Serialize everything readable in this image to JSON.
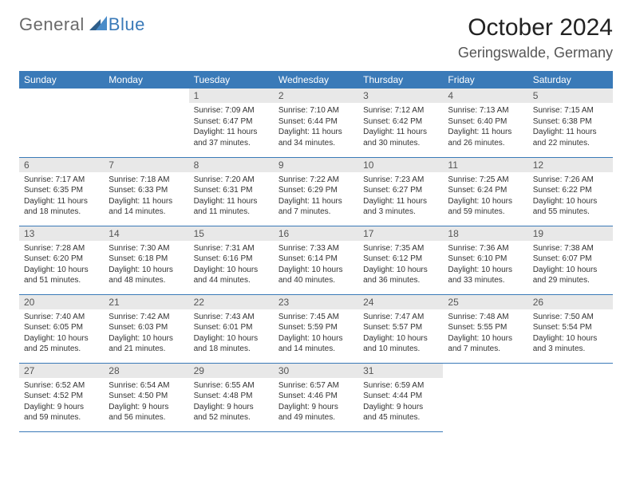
{
  "brand": {
    "part1": "General",
    "part2": "Blue"
  },
  "title": "October 2024",
  "location": "Geringswalde, Germany",
  "colors": {
    "header_bg": "#3a7ab8",
    "header_text": "#ffffff",
    "daynum_bg": "#e8e8e8",
    "daynum_text": "#555555",
    "body_text": "#333333",
    "rule": "#3a7ab8",
    "page_bg": "#ffffff",
    "logo_gray": "#6a6a6a",
    "logo_blue": "#3a7ab8"
  },
  "typography": {
    "month_title_pt": 30,
    "location_pt": 18,
    "dayheader_pt": 12,
    "daynum_pt": 12,
    "body_pt": 10,
    "font_family": "Arial"
  },
  "grid": {
    "columns": 7,
    "rows": 5,
    "first_weekday_index": 2,
    "days_in_month": 31
  },
  "day_headers": [
    "Sunday",
    "Monday",
    "Tuesday",
    "Wednesday",
    "Thursday",
    "Friday",
    "Saturday"
  ],
  "days": [
    {
      "n": 1,
      "sunrise": "7:09 AM",
      "sunset": "6:47 PM",
      "daylight": "11 hours and 37 minutes."
    },
    {
      "n": 2,
      "sunrise": "7:10 AM",
      "sunset": "6:44 PM",
      "daylight": "11 hours and 34 minutes."
    },
    {
      "n": 3,
      "sunrise": "7:12 AM",
      "sunset": "6:42 PM",
      "daylight": "11 hours and 30 minutes."
    },
    {
      "n": 4,
      "sunrise": "7:13 AM",
      "sunset": "6:40 PM",
      "daylight": "11 hours and 26 minutes."
    },
    {
      "n": 5,
      "sunrise": "7:15 AM",
      "sunset": "6:38 PM",
      "daylight": "11 hours and 22 minutes."
    },
    {
      "n": 6,
      "sunrise": "7:17 AM",
      "sunset": "6:35 PM",
      "daylight": "11 hours and 18 minutes."
    },
    {
      "n": 7,
      "sunrise": "7:18 AM",
      "sunset": "6:33 PM",
      "daylight": "11 hours and 14 minutes."
    },
    {
      "n": 8,
      "sunrise": "7:20 AM",
      "sunset": "6:31 PM",
      "daylight": "11 hours and 11 minutes."
    },
    {
      "n": 9,
      "sunrise": "7:22 AM",
      "sunset": "6:29 PM",
      "daylight": "11 hours and 7 minutes."
    },
    {
      "n": 10,
      "sunrise": "7:23 AM",
      "sunset": "6:27 PM",
      "daylight": "11 hours and 3 minutes."
    },
    {
      "n": 11,
      "sunrise": "7:25 AM",
      "sunset": "6:24 PM",
      "daylight": "10 hours and 59 minutes."
    },
    {
      "n": 12,
      "sunrise": "7:26 AM",
      "sunset": "6:22 PM",
      "daylight": "10 hours and 55 minutes."
    },
    {
      "n": 13,
      "sunrise": "7:28 AM",
      "sunset": "6:20 PM",
      "daylight": "10 hours and 51 minutes."
    },
    {
      "n": 14,
      "sunrise": "7:30 AM",
      "sunset": "6:18 PM",
      "daylight": "10 hours and 48 minutes."
    },
    {
      "n": 15,
      "sunrise": "7:31 AM",
      "sunset": "6:16 PM",
      "daylight": "10 hours and 44 minutes."
    },
    {
      "n": 16,
      "sunrise": "7:33 AM",
      "sunset": "6:14 PM",
      "daylight": "10 hours and 40 minutes."
    },
    {
      "n": 17,
      "sunrise": "7:35 AM",
      "sunset": "6:12 PM",
      "daylight": "10 hours and 36 minutes."
    },
    {
      "n": 18,
      "sunrise": "7:36 AM",
      "sunset": "6:10 PM",
      "daylight": "10 hours and 33 minutes."
    },
    {
      "n": 19,
      "sunrise": "7:38 AM",
      "sunset": "6:07 PM",
      "daylight": "10 hours and 29 minutes."
    },
    {
      "n": 20,
      "sunrise": "7:40 AM",
      "sunset": "6:05 PM",
      "daylight": "10 hours and 25 minutes."
    },
    {
      "n": 21,
      "sunrise": "7:42 AM",
      "sunset": "6:03 PM",
      "daylight": "10 hours and 21 minutes."
    },
    {
      "n": 22,
      "sunrise": "7:43 AM",
      "sunset": "6:01 PM",
      "daylight": "10 hours and 18 minutes."
    },
    {
      "n": 23,
      "sunrise": "7:45 AM",
      "sunset": "5:59 PM",
      "daylight": "10 hours and 14 minutes."
    },
    {
      "n": 24,
      "sunrise": "7:47 AM",
      "sunset": "5:57 PM",
      "daylight": "10 hours and 10 minutes."
    },
    {
      "n": 25,
      "sunrise": "7:48 AM",
      "sunset": "5:55 PM",
      "daylight": "10 hours and 7 minutes."
    },
    {
      "n": 26,
      "sunrise": "7:50 AM",
      "sunset": "5:54 PM",
      "daylight": "10 hours and 3 minutes."
    },
    {
      "n": 27,
      "sunrise": "6:52 AM",
      "sunset": "4:52 PM",
      "daylight": "9 hours and 59 minutes."
    },
    {
      "n": 28,
      "sunrise": "6:54 AM",
      "sunset": "4:50 PM",
      "daylight": "9 hours and 56 minutes."
    },
    {
      "n": 29,
      "sunrise": "6:55 AM",
      "sunset": "4:48 PM",
      "daylight": "9 hours and 52 minutes."
    },
    {
      "n": 30,
      "sunrise": "6:57 AM",
      "sunset": "4:46 PM",
      "daylight": "9 hours and 49 minutes."
    },
    {
      "n": 31,
      "sunrise": "6:59 AM",
      "sunset": "4:44 PM",
      "daylight": "9 hours and 45 minutes."
    }
  ],
  "labels": {
    "sunrise": "Sunrise:",
    "sunset": "Sunset:",
    "daylight": "Daylight:"
  }
}
